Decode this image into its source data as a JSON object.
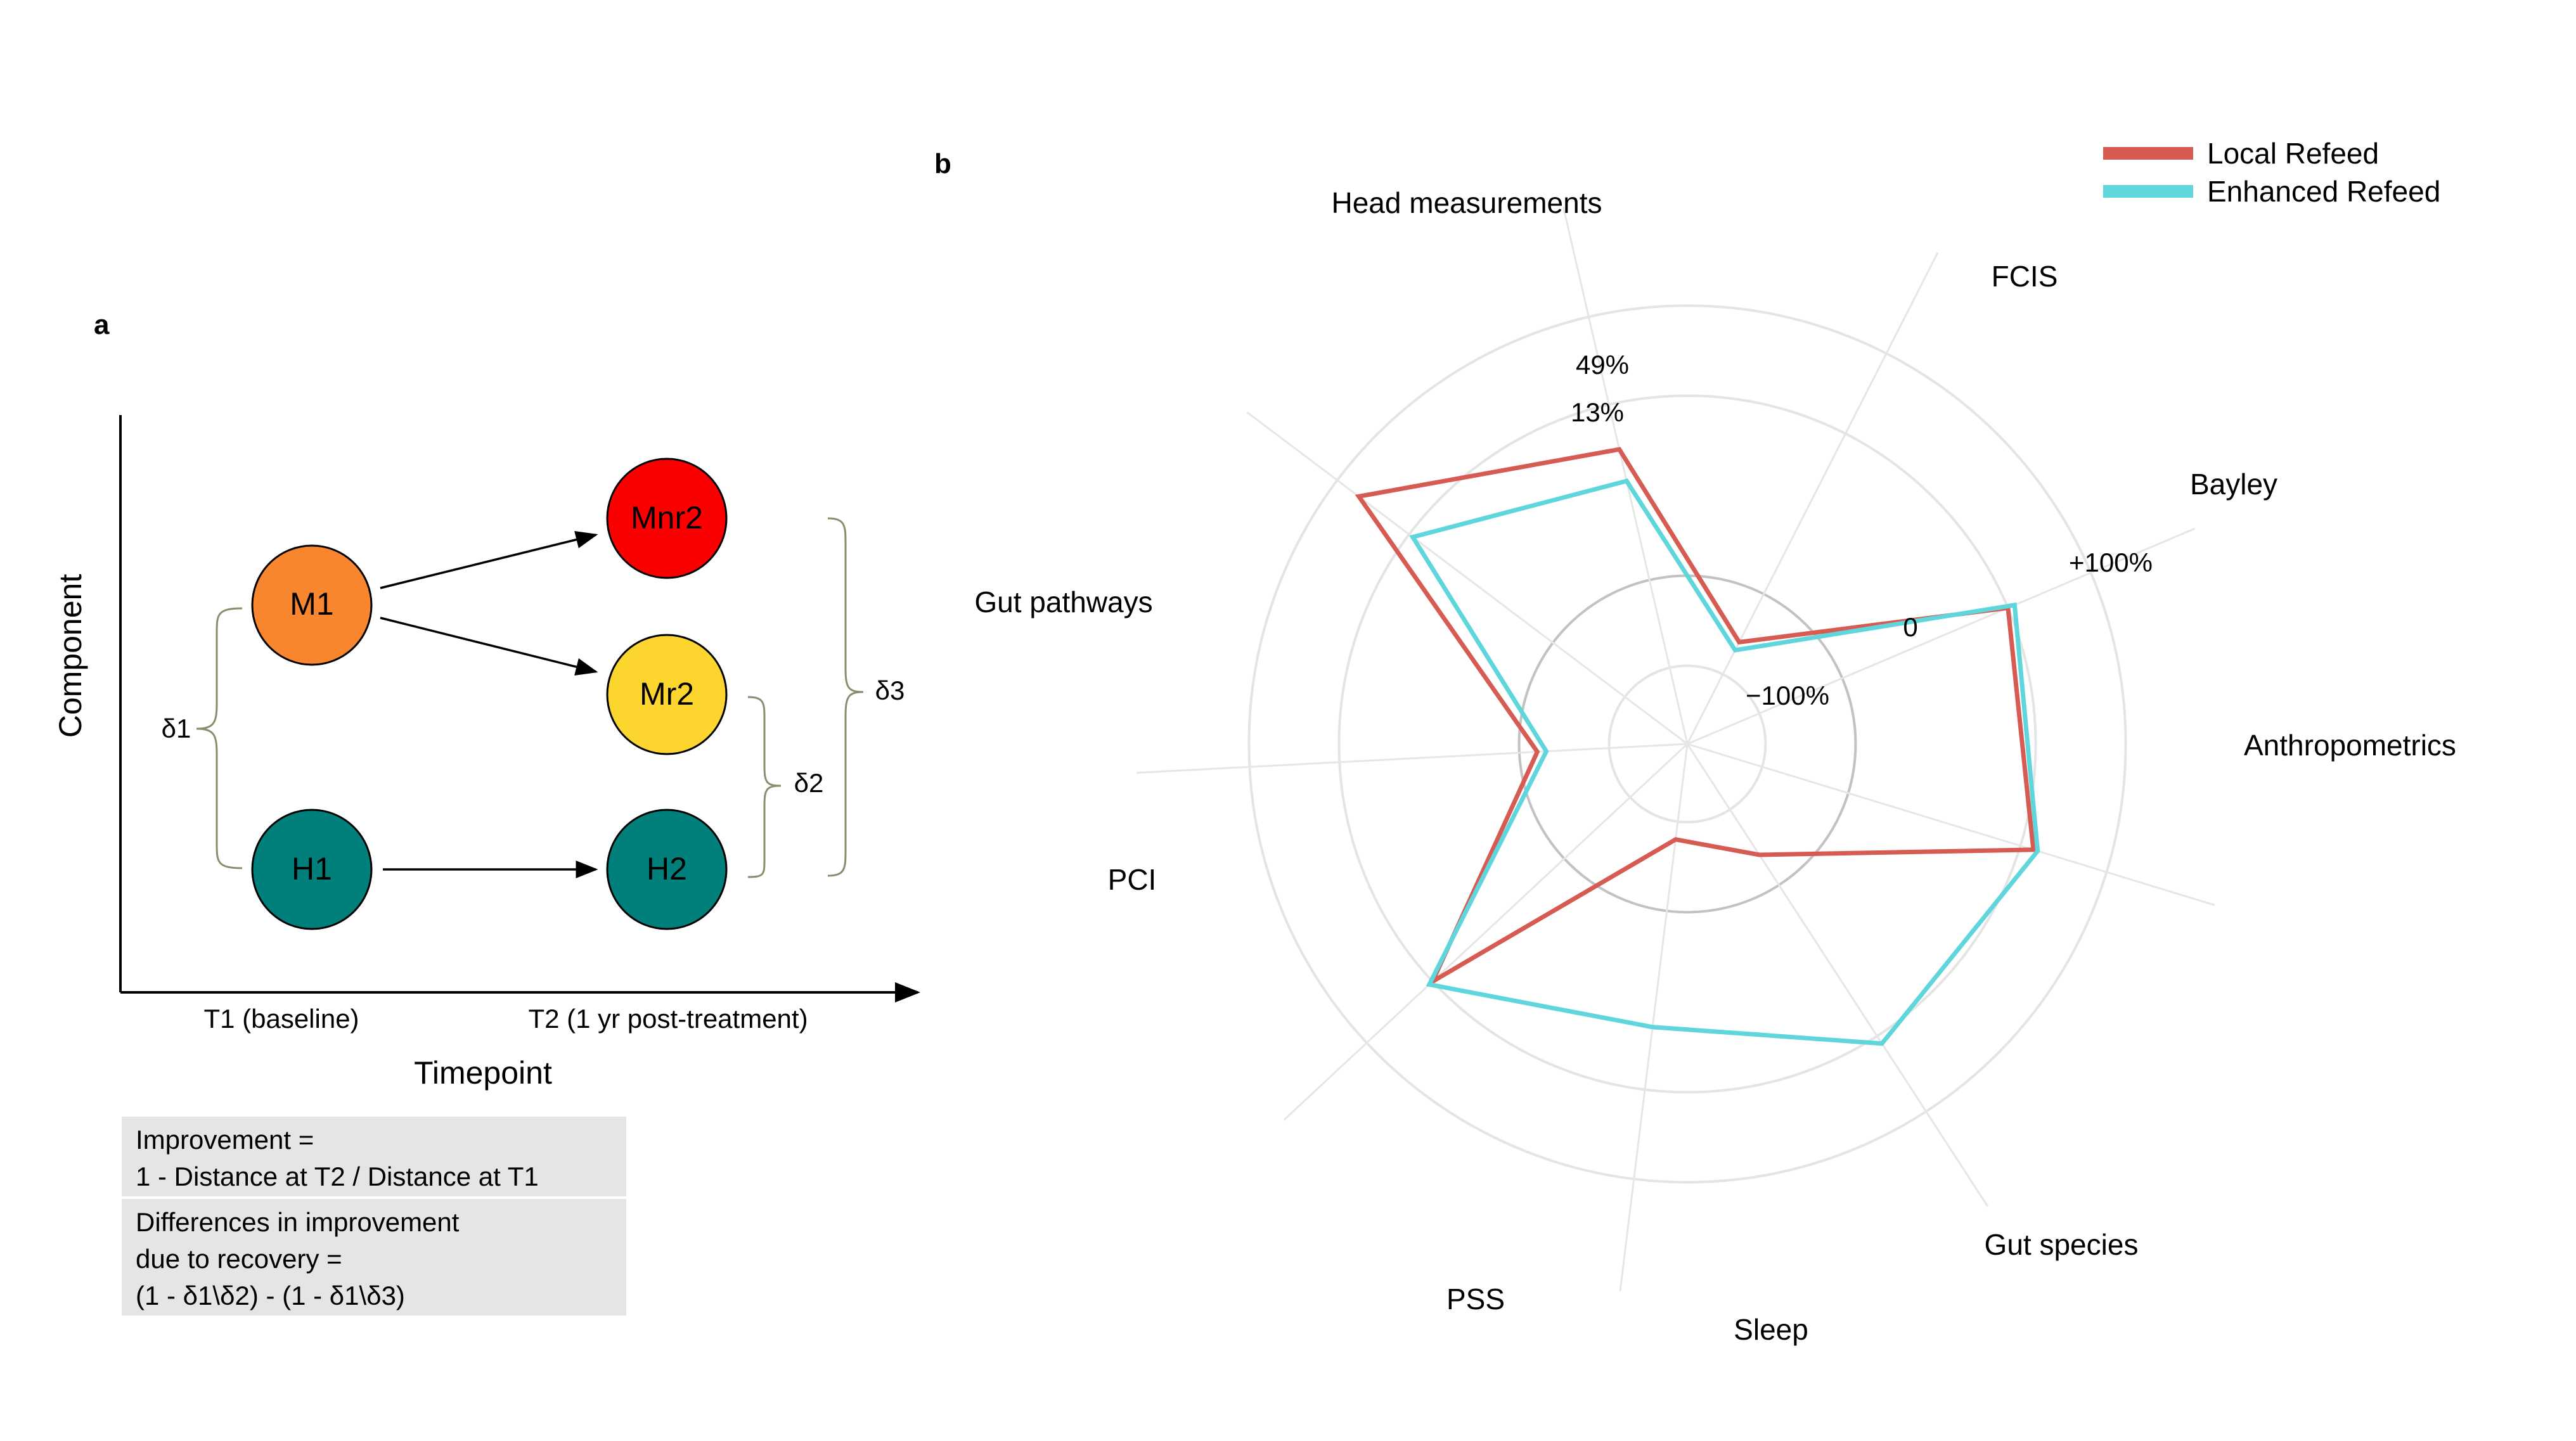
{
  "panel_a": {
    "letter": "a",
    "y_axis_label": "Component",
    "x_axis_label": "Timepoint",
    "timepoints": [
      "T1 (baseline)",
      "T2 (1 yr post-treatment)"
    ],
    "nodes": [
      {
        "id": "M1",
        "label": "M1",
        "color": "#f7862e"
      },
      {
        "id": "H1",
        "label": "H1",
        "color": "#007f7b"
      },
      {
        "id": "Mnr2",
        "label": "Mnr2",
        "color": "#fa0000"
      },
      {
        "id": "Mr2",
        "label": "Mr2",
        "color": "#fcd52e"
      },
      {
        "id": "H2",
        "label": "H2",
        "color": "#007f7b"
      }
    ],
    "brackets": [
      "δ1",
      "δ2",
      "δ3"
    ],
    "bracket_color": "#8e8c6e",
    "formula_box_1": [
      "Improvement =",
      "1 - Distance at T2 / Distance at T1"
    ],
    "formula_box_2": [
      "Differences in improvement",
      "due to recovery =",
      "(1 - δ1\\δ2) - (1 - δ1\\δ3)"
    ]
  },
  "panel_b": {
    "letter": "b",
    "legend": [
      {
        "name": "Local Refeed",
        "color": "#d65b52"
      },
      {
        "name": "Enhanced Refeed",
        "color": "#5ed6dc"
      }
    ],
    "ring_labels": {
      "outer_top_red": "49%",
      "outer_top_cyan": "13%",
      "plus100": "+100%",
      "zero": "0",
      "minus100": "−100%"
    }
  },
  "chart_data": {
    "type": "radar",
    "axes": [
      "Head measurements",
      "FCIS",
      "Bayley",
      "Anthropometrics",
      "Gut species",
      "Sleep",
      "PSS",
      "PCI",
      "Gut pathways"
    ],
    "radial_ticks": [
      "−100%",
      "0",
      "+100%"
    ],
    "series": [
      {
        "name": "Local Refeed",
        "values": [
          49,
          -160,
          100,
          115,
          -140,
          -180,
          100,
          -120,
          170
        ]
      },
      {
        "name": "Enhanced Refeed",
        "values": [
          13,
          -170,
          108,
          120,
          110,
          30,
          105,
          -130,
          95
        ]
      }
    ]
  }
}
